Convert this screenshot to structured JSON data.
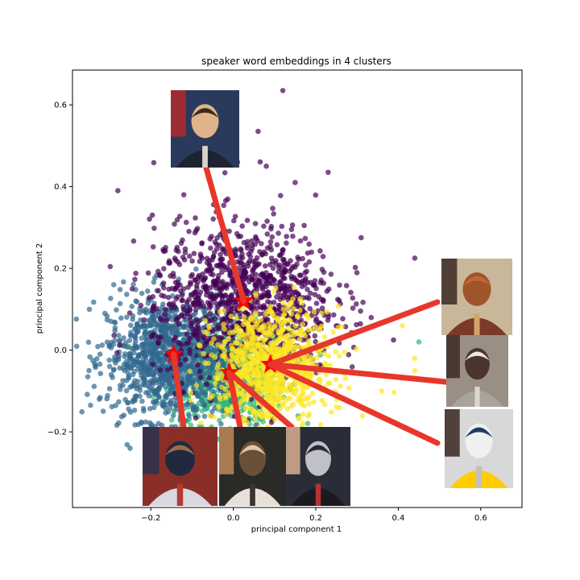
{
  "chart_data": {
    "type": "scatter",
    "title": "speaker word embeddings in 4 clusters",
    "xlabel": "principal component 1",
    "ylabel": "principal component 2",
    "xlim": [
      -0.39,
      0.7
    ],
    "ylim": [
      -0.385,
      0.685
    ],
    "xticks": [
      -0.2,
      0.0,
      0.2,
      0.4,
      0.6
    ],
    "xtick_labels": [
      "−0.2",
      "0.0",
      "0.2",
      "0.4",
      "0.6"
    ],
    "yticks": [
      -0.2,
      0.0,
      0.2,
      0.4,
      0.6
    ],
    "ytick_labels": [
      "−0.2",
      "0.0",
      "0.2",
      "0.4",
      "0.6"
    ],
    "grid": false,
    "legend": "none",
    "marker_alpha": 0.7,
    "clusters": [
      {
        "color": "#440154",
        "center": [
          0.025,
          0.12
        ],
        "spread": [
          0.11,
          0.095
        ],
        "count": 1100
      },
      {
        "color": "#31688e",
        "center": [
          -0.155,
          -0.02
        ],
        "spread": [
          0.075,
          0.075
        ],
        "count": 1100
      },
      {
        "color": "#35b779",
        "center": [
          -0.01,
          -0.06
        ],
        "spread": [
          0.07,
          0.06
        ],
        "count": 800
      },
      {
        "color": "#fde725",
        "center": [
          0.09,
          -0.04
        ],
        "spread": [
          0.07,
          0.07
        ],
        "count": 900
      }
    ],
    "centroids": [
      {
        "x": 0.025,
        "y": 0.12
      },
      {
        "x": -0.145,
        "y": -0.01
      },
      {
        "x": -0.01,
        "y": -0.055
      },
      {
        "x": 0.09,
        "y": -0.035
      }
    ],
    "centroid_color": "#ff0000",
    "connector_color": "#e8372a",
    "outliers": [
      {
        "x": 0.12,
        "y": 0.635,
        "c": 0
      },
      {
        "x": -0.04,
        "y": 0.505,
        "c": 0
      },
      {
        "x": 0.06,
        "y": 0.535,
        "c": 0
      },
      {
        "x": 0.23,
        "y": 0.435,
        "c": 0
      },
      {
        "x": -0.28,
        "y": 0.39,
        "c": 0
      },
      {
        "x": 0.31,
        "y": 0.275,
        "c": 0
      },
      {
        "x": 0.44,
        "y": 0.225,
        "c": 0
      },
      {
        "x": 0.01,
        "y": 0.46,
        "c": 0
      },
      {
        "x": 0.08,
        "y": 0.45,
        "c": 0
      },
      {
        "x": -0.12,
        "y": 0.38,
        "c": 0
      },
      {
        "x": 0.15,
        "y": 0.41,
        "c": 0
      },
      {
        "x": -0.325,
        "y": -0.12,
        "c": 1
      },
      {
        "x": -0.3,
        "y": -0.04,
        "c": 1
      },
      {
        "x": -0.29,
        "y": 0.16,
        "c": 1
      },
      {
        "x": -0.35,
        "y": -0.05,
        "c": 1
      },
      {
        "x": 0.44,
        "y": -0.02,
        "c": 3
      },
      {
        "x": 0.44,
        "y": -0.05,
        "c": 3
      },
      {
        "x": 0.41,
        "y": 0.06,
        "c": 3
      },
      {
        "x": 0.36,
        "y": -0.1,
        "c": 3
      },
      {
        "x": 0.45,
        "y": 0.02,
        "c": 2
      }
    ]
  },
  "photos": [
    {
      "name": "portrait-top",
      "alt": "speaker portrait",
      "tones": [
        "#2a3a5c",
        "#b22a2a",
        "#3a2a1f",
        "#e0b48a",
        "#1d2330",
        "#d9d2c7"
      ]
    },
    {
      "name": "portrait-right-1",
      "alt": "speaker portrait",
      "tones": [
        "#c9b79a",
        "#3a2a22",
        "#c5653b",
        "#a0542a",
        "#7a3a28",
        "#d4a36a"
      ]
    },
    {
      "name": "portrait-right-2",
      "alt": "speaker portrait",
      "tones": [
        "#9a8f85",
        "#3b2a22",
        "#ece8e2",
        "#4a352c",
        "#a8a49c",
        "#dcd8d1"
      ]
    },
    {
      "name": "portrait-right-3",
      "alt": "speaker portrait",
      "tones": [
        "#d8d8d8",
        "#3a2620",
        "#233a6a",
        "#f0f0f0",
        "#ffcc00",
        "#c0c0c0"
      ]
    },
    {
      "name": "portrait-bottom-1",
      "alt": "speaker portrait",
      "tones": [
        "#8a2f28",
        "#28334d",
        "#a06a4a",
        "#1f2a40",
        "#d8d8e0",
        "#b33a30"
      ]
    },
    {
      "name": "portrait-bottom-2",
      "alt": "speaker portrait",
      "tones": [
        "#2a2a26",
        "#c08a5c",
        "#e6c4a8",
        "#6a5038",
        "#e8e0d8",
        "#3a3430"
      ]
    },
    {
      "name": "portrait-bottom-3",
      "alt": "speaker portrait",
      "tones": [
        "#2a2d38",
        "#d8b090",
        "#2a2a2a",
        "#c0c0c8",
        "#1a1a22",
        "#b83030"
      ]
    }
  ]
}
